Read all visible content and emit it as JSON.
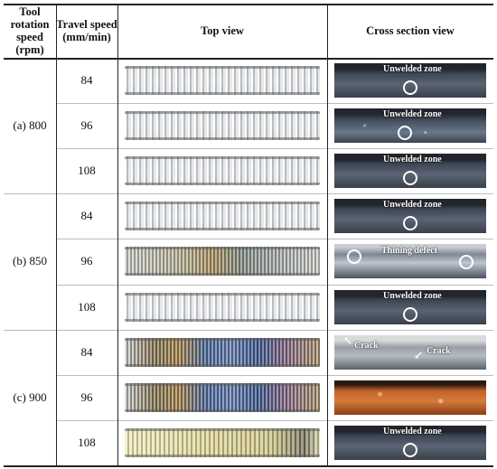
{
  "header": {
    "rotation": "Tool rotation speed (rpm)",
    "travel": "Travel speed (mm/min)",
    "top_view": "Top view",
    "cross_section": "Cross section view"
  },
  "groups": [
    {
      "label": "(a) 800",
      "rows": [
        {
          "speed": "84",
          "top_style": "silver",
          "xs_style": "dark",
          "annotation": "Unwelded zone"
        },
        {
          "speed": "96",
          "top_style": "silver",
          "xs_style": "speck",
          "annotation": "Unwelded zone"
        },
        {
          "speed": "108",
          "top_style": "silver",
          "xs_style": "dark",
          "annotation": "Unwelded zone"
        }
      ]
    },
    {
      "label": "(b) 850",
      "rows": [
        {
          "speed": "84",
          "top_style": "silver",
          "xs_style": "dark",
          "annotation": "Unwelded zone"
        },
        {
          "speed": "96",
          "top_style": "bronze",
          "xs_style": "thin",
          "annotation": "Thining defect"
        },
        {
          "speed": "108",
          "top_style": "silver",
          "xs_style": "dark",
          "annotation": "Unwelded zone"
        }
      ]
    },
    {
      "label": "(c) 900",
      "rows": [
        {
          "speed": "84",
          "top_style": "tempered",
          "xs_style": "crack",
          "annotation": "Crack",
          "annotation2": "Crack"
        },
        {
          "speed": "96",
          "top_style": "tempered",
          "xs_style": "copper",
          "annotation": ""
        },
        {
          "speed": "108",
          "top_style": "yellow",
          "xs_style": "dark",
          "annotation": "Unwelded zone"
        }
      ]
    }
  ],
  "colors": {
    "silver": "#d9dcde",
    "bronze": "#a88f5a",
    "tempered_blue": "#4d6fa6",
    "copper": "#c0622a",
    "xs_dark": "#3d4654"
  }
}
